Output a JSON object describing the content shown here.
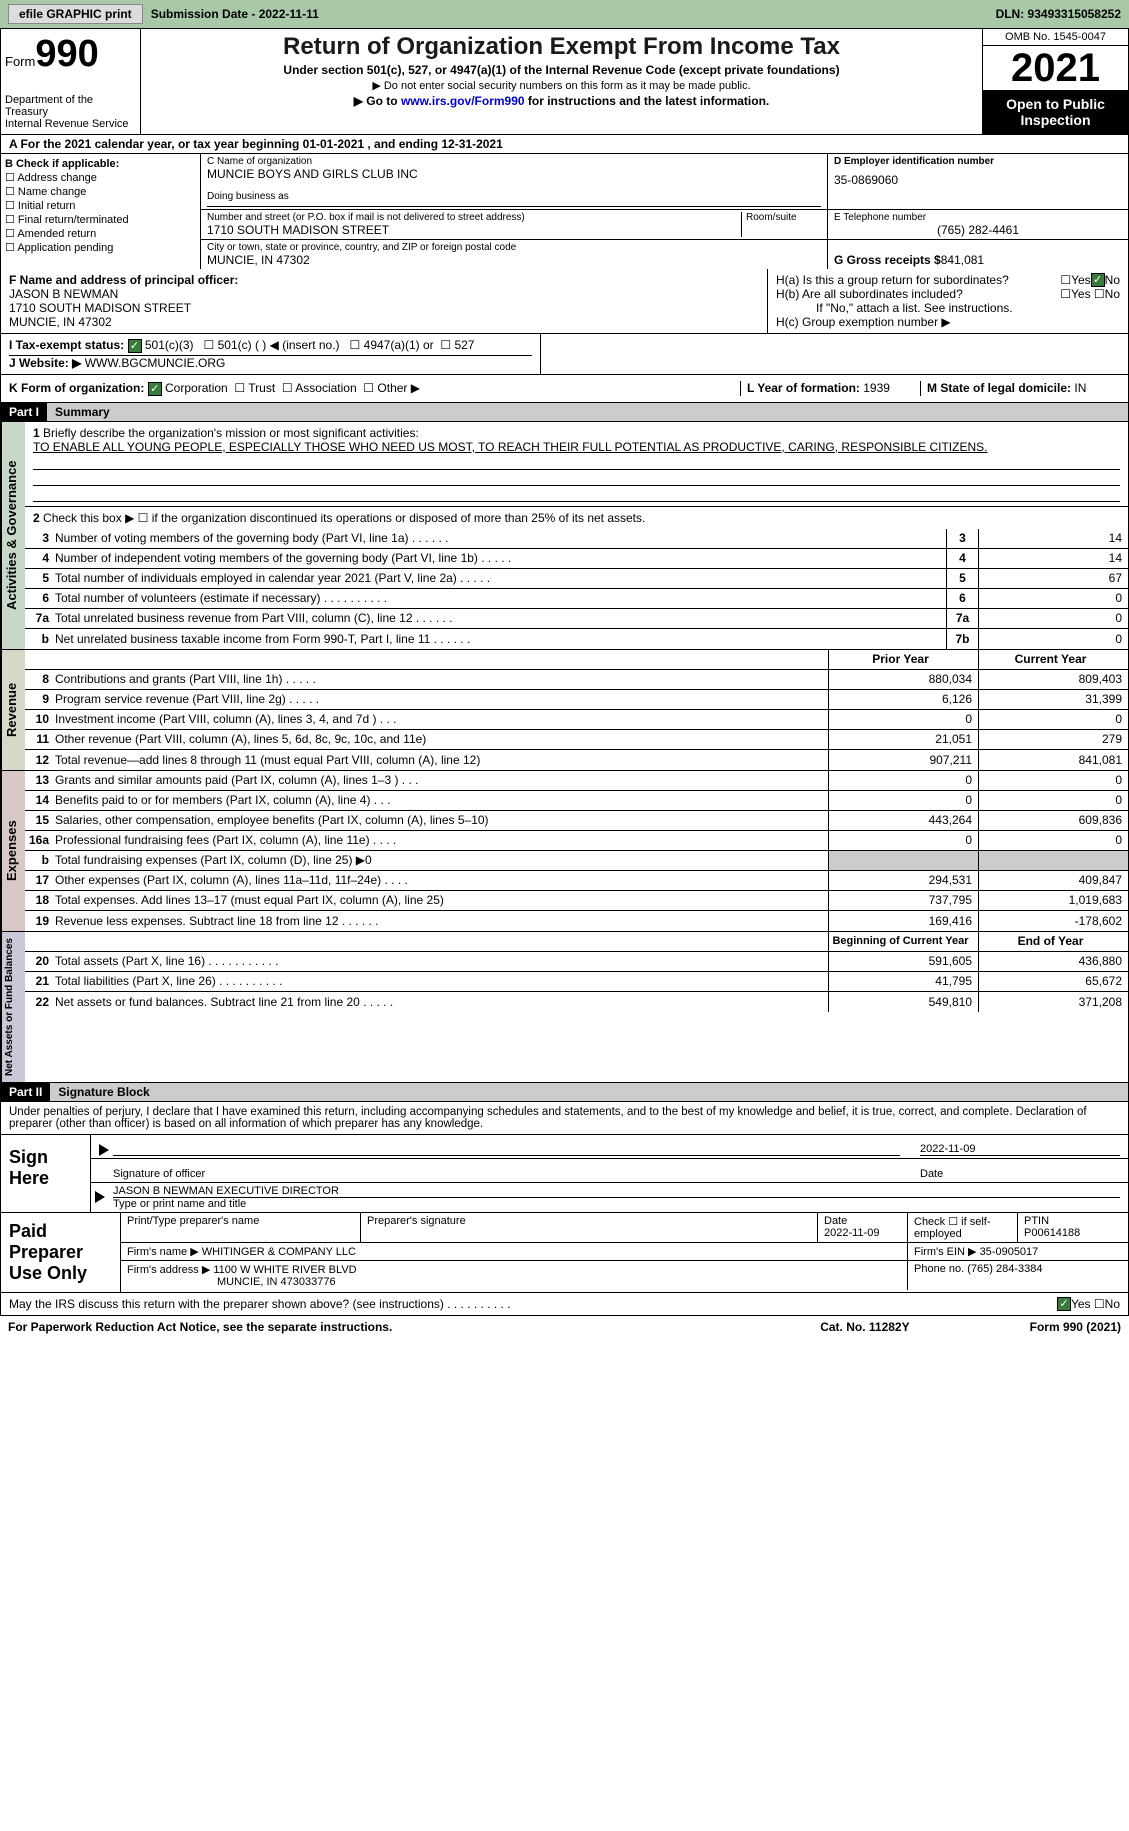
{
  "topbar": {
    "efile": "efile GRAPHIC print",
    "submission": "Submission Date - 2022-11-11",
    "dln": "DLN: 93493315058252"
  },
  "header": {
    "form": "Form",
    "form_num": "990",
    "dept": "Department of the Treasury",
    "irs": "Internal Revenue Service",
    "title": "Return of Organization Exempt From Income Tax",
    "sub1": "Under section 501(c), 527, or 4947(a)(1) of the Internal Revenue Code (except private foundations)",
    "sub2": "▶ Do not enter social security numbers on this form as it may be made public.",
    "sub3_pre": "▶ Go to ",
    "sub3_link": "www.irs.gov/Form990",
    "sub3_post": " for instructions and the latest information.",
    "omb": "OMB No. 1545-0047",
    "year": "2021",
    "otpi": "Open to Public Inspection"
  },
  "row_a": "A For the 2021 calendar year, or tax year beginning 01-01-2021    , and ending 12-31-2021",
  "col_b": {
    "label": "B Check if applicable:",
    "opts": [
      "Address change",
      "Name change",
      "Initial return",
      "Final return/terminated",
      "Amended return",
      "Application pending"
    ]
  },
  "col_c": {
    "name_lbl": "C Name of organization",
    "name": "MUNCIE BOYS AND GIRLS CLUB INC",
    "dba_lbl": "Doing business as",
    "addr_lbl": "Number and street (or P.O. box if mail is not delivered to street address)",
    "room_lbl": "Room/suite",
    "addr": "1710 SOUTH MADISON STREET",
    "city_lbl": "City or town, state or province, country, and ZIP or foreign postal code",
    "city": "MUNCIE, IN  47302"
  },
  "col_d": {
    "ein_lbl": "D Employer identification number",
    "ein": "35-0869060",
    "tel_lbl": "E Telephone number",
    "tel": "(765) 282-4461",
    "gross_lbl": "G Gross receipts $ ",
    "gross": "841,081"
  },
  "col_f": {
    "lbl": "F Name and address of principal officer:",
    "name": "JASON B NEWMAN",
    "addr1": "1710 SOUTH MADISON STREET",
    "addr2": "MUNCIE, IN  47302"
  },
  "col_h": {
    "ha": "H(a)  Is this a group return for subordinates?",
    "hb": "H(b)  Are all subordinates included?",
    "hb_note": "If \"No,\" attach a list. See instructions.",
    "hc": "H(c)  Group exemption number ▶"
  },
  "row_i": {
    "lbl": "I  Tax-exempt status:",
    "o1": "501(c)(3)",
    "o2": "501(c) (  ) ◀ (insert no.)",
    "o3": "4947(a)(1) or",
    "o4": "527"
  },
  "row_j": {
    "lbl": "J  Website: ▶",
    "val": "WWW.BGCMUNCIE.ORG"
  },
  "row_k": {
    "lbl": "K Form of organization:",
    "o1": "Corporation",
    "o2": "Trust",
    "o3": "Association",
    "o4": "Other ▶",
    "l": "L Year of formation: ",
    "l_val": "1939",
    "m": "M State of legal domicile: ",
    "m_val": "IN"
  },
  "part1": {
    "pt": "Part I",
    "title": "Summary",
    "l1_lbl": "Briefly describe the organization's mission or most significant activities:",
    "l1_val": "TO ENABLE ALL YOUNG PEOPLE, ESPECIALLY THOSE WHO NEED US MOST, TO REACH THEIR FULL POTENTIAL AS PRODUCTIVE, CARING, RESPONSIBLE CITIZENS.",
    "l2": "Check this box ▶ ☐  if the organization discontinued its operations or disposed of more than 25% of its net assets.",
    "vtab_ag": "Activities & Governance",
    "vtab_rev": "Revenue",
    "vtab_exp": "Expenses",
    "vtab_na": "Net Assets or Fund Balances",
    "lines_ag": [
      {
        "n": "3",
        "t": "Number of voting members of the governing body (Part VI, line 1a)   .    .    .    .    .    .",
        "b": "3",
        "v": "14"
      },
      {
        "n": "4",
        "t": "Number of independent voting members of the governing body (Part VI, line 1b)  .    .    .    .    .",
        "b": "4",
        "v": "14"
      },
      {
        "n": "5",
        "t": "Total number of individuals employed in calendar year 2021 (Part V, line 2a)   .    .    .    .    .",
        "b": "5",
        "v": "67"
      },
      {
        "n": "6",
        "t": "Total number of volunteers (estimate if necessary)    .    .    .    .    .    .    .    .    .    .",
        "b": "6",
        "v": "0"
      },
      {
        "n": "7a",
        "t": "Total unrelated business revenue from Part VIII, column (C), line 12    .    .    .    .    .    .",
        "b": "7a",
        "v": "0"
      },
      {
        "n": "b",
        "t": "Net unrelated business taxable income from Form 990-T, Part I, line 11   .    .    .    .    .    .",
        "b": "7b",
        "v": "0"
      }
    ],
    "hd_prior": "Prior Year",
    "hd_curr": "Current Year",
    "lines_rev": [
      {
        "n": "8",
        "t": "Contributions and grants (Part VIII, line 1h)   .    .    .    .    .",
        "p": "880,034",
        "c": "809,403"
      },
      {
        "n": "9",
        "t": "Program service revenue (Part VIII, line 2g)   .    .    .    .    .",
        "p": "6,126",
        "c": "31,399"
      },
      {
        "n": "10",
        "t": "Investment income (Part VIII, column (A), lines 3, 4, and 7d )   .    .    .",
        "p": "0",
        "c": "0"
      },
      {
        "n": "11",
        "t": "Other revenue (Part VIII, column (A), lines 5, 6d, 8c, 9c, 10c, and 11e)",
        "p": "21,051",
        "c": "279"
      },
      {
        "n": "12",
        "t": "Total revenue—add lines 8 through 11 (must equal Part VIII, column (A), line 12)",
        "p": "907,211",
        "c": "841,081"
      }
    ],
    "lines_exp": [
      {
        "n": "13",
        "t": "Grants and similar amounts paid (Part IX, column (A), lines 1–3 )   .    .    .",
        "p": "0",
        "c": "0"
      },
      {
        "n": "14",
        "t": "Benefits paid to or for members (Part IX, column (A), line 4)   .    .    .",
        "p": "0",
        "c": "0"
      },
      {
        "n": "15",
        "t": "Salaries, other compensation, employee benefits (Part IX, column (A), lines 5–10)",
        "p": "443,264",
        "c": "609,836"
      },
      {
        "n": "16a",
        "t": "Professional fundraising fees (Part IX, column (A), line 11e)   .    .    .    .",
        "p": "0",
        "c": "0"
      },
      {
        "n": "b",
        "t": "Total fundraising expenses (Part IX, column (D), line 25) ▶0",
        "p": "",
        "c": "",
        "shade": true
      },
      {
        "n": "17",
        "t": "Other expenses (Part IX, column (A), lines 11a–11d, 11f–24e)   .    .    .    .",
        "p": "294,531",
        "c": "409,847"
      },
      {
        "n": "18",
        "t": "Total expenses. Add lines 13–17 (must equal Part IX, column (A), line 25)",
        "p": "737,795",
        "c": "1,019,683"
      },
      {
        "n": "19",
        "t": "Revenue less expenses. Subtract line 18 from line 12   .    .    .    .    .    .",
        "p": "169,416",
        "c": "-178,602"
      }
    ],
    "hd_beg": "Beginning of Current Year",
    "hd_end": "End of Year",
    "lines_na": [
      {
        "n": "20",
        "t": "Total assets (Part X, line 16)   .    .    .    .    .    .    .    .    .    .    .",
        "p": "591,605",
        "c": "436,880"
      },
      {
        "n": "21",
        "t": "Total liabilities (Part X, line 26)   .    .    .    .    .    .    .    .    .    .",
        "p": "41,795",
        "c": "65,672"
      },
      {
        "n": "22",
        "t": "Net assets or fund balances. Subtract line 21 from line 20   .    .    .    .    .",
        "p": "549,810",
        "c": "371,208"
      }
    ]
  },
  "part2": {
    "pt": "Part II",
    "title": "Signature Block",
    "decl": "Under penalties of perjury, I declare that I have examined this return, including accompanying schedules and statements, and to the best of my knowledge and belief, it is true, correct, and complete. Declaration of preparer (other than officer) is based on all information of which preparer has any knowledge.",
    "sign_here": "Sign Here",
    "sig_off": "Signature of officer",
    "sig_date": "2022-11-09",
    "date_lbl": "Date",
    "name": "JASON B NEWMAN  EXECUTIVE DIRECTOR",
    "name_lbl": "Type or print name and title",
    "paid": "Paid Preparer Use Only",
    "prep_name_lbl": "Print/Type preparer's name",
    "prep_sig_lbl": "Preparer's signature",
    "prep_date_lbl": "Date",
    "prep_date": "2022-11-09",
    "check_self": "Check ☐ if self-employed",
    "ptin_lbl": "PTIN",
    "ptin": "P00614188",
    "firm_name_lbl": "Firm's name     ▶",
    "firm_name": "WHITINGER & COMPANY LLC",
    "firm_ein_lbl": "Firm's EIN ▶",
    "firm_ein": "35-0905017",
    "firm_addr_lbl": "Firm's address ▶",
    "firm_addr1": "1100 W WHITE RIVER BLVD",
    "firm_addr2": "MUNCIE, IN   473033776",
    "firm_ph_lbl": "Phone no. ",
    "firm_ph": "(765) 284-3384",
    "may_irs": "May the IRS discuss this return with the preparer shown above? (see instructions)   .    .    .    .    .    .    .    .    .    .",
    "yes": "Yes",
    "no": "No"
  },
  "footer": {
    "pra": "For Paperwork Reduction Act Notice, see the separate instructions.",
    "cat": "Cat. No. 11282Y",
    "form": "Form 990 (2021)"
  }
}
